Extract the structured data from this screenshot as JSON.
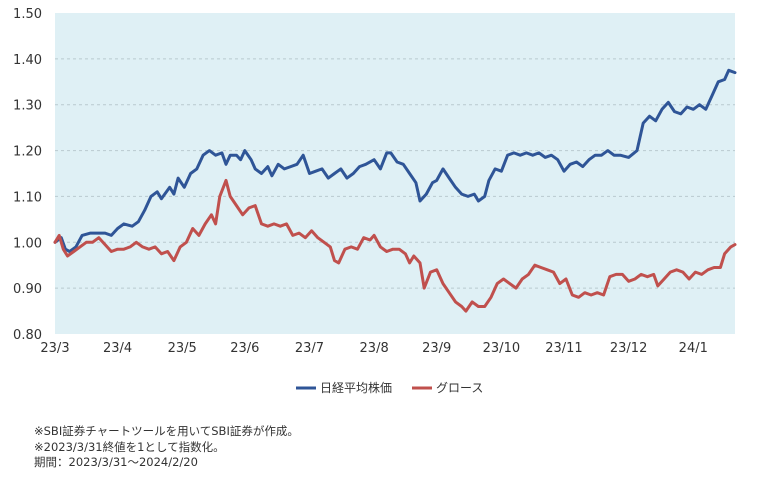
{
  "chart_data": {
    "type": "line",
    "title": "",
    "xlabel": "",
    "ylabel": "",
    "ylim": [
      0.8,
      1.5
    ],
    "yticks": [
      "0.80",
      "0.90",
      "1.00",
      "1.10",
      "1.20",
      "1.30",
      "1.40",
      "1.50"
    ],
    "xlim": [
      "2023-03-31",
      "2024-02-20"
    ],
    "xticks": [
      {
        "label": "23/3",
        "date": "2023-03-31"
      },
      {
        "label": "23/4",
        "date": "2023-04-30"
      },
      {
        "label": "23/5",
        "date": "2023-05-31"
      },
      {
        "label": "23/6",
        "date": "2023-06-30"
      },
      {
        "label": "23/7",
        "date": "2023-07-31"
      },
      {
        "label": "23/8",
        "date": "2023-08-31"
      },
      {
        "label": "23/9",
        "date": "2023-09-30"
      },
      {
        "label": "23/10",
        "date": "2023-10-31"
      },
      {
        "label": "23/11",
        "date": "2023-11-30"
      },
      {
        "label": "23/12",
        "date": "2023-12-31"
      },
      {
        "label": "24/1",
        "date": "2024-01-31"
      }
    ],
    "grid": "horizontal dashed",
    "background": "#dff0f5",
    "legend_position": "bottom",
    "series": [
      {
        "name": "日経平均株価",
        "color": "#2f5597",
        "points": [
          [
            "2023-03-31",
            1.0
          ],
          [
            "2023-04-03",
            1.01
          ],
          [
            "2023-04-05",
            0.985
          ],
          [
            "2023-04-07",
            0.98
          ],
          [
            "2023-04-10",
            0.99
          ],
          [
            "2023-04-13",
            1.015
          ],
          [
            "2023-04-17",
            1.02
          ],
          [
            "2023-04-20",
            1.02
          ],
          [
            "2023-04-24",
            1.02
          ],
          [
            "2023-04-27",
            1.015
          ],
          [
            "2023-04-30",
            1.03
          ],
          [
            "2023-05-03",
            1.04
          ],
          [
            "2023-05-07",
            1.035
          ],
          [
            "2023-05-10",
            1.045
          ],
          [
            "2023-05-13",
            1.07
          ],
          [
            "2023-05-16",
            1.1
          ],
          [
            "2023-05-19",
            1.11
          ],
          [
            "2023-05-21",
            1.095
          ],
          [
            "2023-05-25",
            1.12
          ],
          [
            "2023-05-27",
            1.105
          ],
          [
            "2023-05-29",
            1.14
          ],
          [
            "2023-06-01",
            1.12
          ],
          [
            "2023-06-04",
            1.15
          ],
          [
            "2023-06-07",
            1.16
          ],
          [
            "2023-06-10",
            1.19
          ],
          [
            "2023-06-13",
            1.2
          ],
          [
            "2023-06-16",
            1.19
          ],
          [
            "2023-06-19",
            1.195
          ],
          [
            "2023-06-21",
            1.17
          ],
          [
            "2023-06-23",
            1.19
          ],
          [
            "2023-06-26",
            1.19
          ],
          [
            "2023-06-28",
            1.18
          ],
          [
            "2023-06-30",
            1.2
          ],
          [
            "2023-07-03",
            1.18
          ],
          [
            "2023-07-05",
            1.16
          ],
          [
            "2023-07-08",
            1.15
          ],
          [
            "2023-07-11",
            1.165
          ],
          [
            "2023-07-13",
            1.145
          ],
          [
            "2023-07-16",
            1.17
          ],
          [
            "2023-07-19",
            1.16
          ],
          [
            "2023-07-22",
            1.165
          ],
          [
            "2023-07-25",
            1.17
          ],
          [
            "2023-07-28",
            1.19
          ],
          [
            "2023-07-31",
            1.15
          ],
          [
            "2023-08-03",
            1.155
          ],
          [
            "2023-08-06",
            1.16
          ],
          [
            "2023-08-09",
            1.14
          ],
          [
            "2023-08-12",
            1.15
          ],
          [
            "2023-08-15",
            1.16
          ],
          [
            "2023-08-18",
            1.14
          ],
          [
            "2023-08-21",
            1.15
          ],
          [
            "2023-08-24",
            1.165
          ],
          [
            "2023-08-27",
            1.17
          ],
          [
            "2023-08-31",
            1.18
          ],
          [
            "2023-09-03",
            1.16
          ],
          [
            "2023-09-06",
            1.195
          ],
          [
            "2023-09-08",
            1.195
          ],
          [
            "2023-09-11",
            1.175
          ],
          [
            "2023-09-14",
            1.17
          ],
          [
            "2023-09-17",
            1.15
          ],
          [
            "2023-09-20",
            1.13
          ],
          [
            "2023-09-22",
            1.09
          ],
          [
            "2023-09-25",
            1.105
          ],
          [
            "2023-09-28",
            1.13
          ],
          [
            "2023-09-30",
            1.135
          ],
          [
            "2023-10-03",
            1.16
          ],
          [
            "2023-10-06",
            1.14
          ],
          [
            "2023-10-09",
            1.12
          ],
          [
            "2023-10-12",
            1.105
          ],
          [
            "2023-10-15",
            1.1
          ],
          [
            "2023-10-18",
            1.105
          ],
          [
            "2023-10-20",
            1.09
          ],
          [
            "2023-10-23",
            1.1
          ],
          [
            "2023-10-25",
            1.135
          ],
          [
            "2023-10-28",
            1.16
          ],
          [
            "2023-10-31",
            1.155
          ],
          [
            "2023-11-03",
            1.19
          ],
          [
            "2023-11-06",
            1.195
          ],
          [
            "2023-11-09",
            1.19
          ],
          [
            "2023-11-12",
            1.195
          ],
          [
            "2023-11-15",
            1.19
          ],
          [
            "2023-11-18",
            1.195
          ],
          [
            "2023-11-21",
            1.185
          ],
          [
            "2023-11-24",
            1.19
          ],
          [
            "2023-11-27",
            1.18
          ],
          [
            "2023-11-30",
            1.155
          ],
          [
            "2023-12-03",
            1.17
          ],
          [
            "2023-12-06",
            1.175
          ],
          [
            "2023-12-09",
            1.165
          ],
          [
            "2023-12-12",
            1.18
          ],
          [
            "2023-12-15",
            1.19
          ],
          [
            "2023-12-18",
            1.19
          ],
          [
            "2023-12-21",
            1.2
          ],
          [
            "2023-12-24",
            1.19
          ],
          [
            "2023-12-27",
            1.19
          ],
          [
            "2023-12-31",
            1.185
          ],
          [
            "2024-01-04",
            1.2
          ],
          [
            "2024-01-07",
            1.26
          ],
          [
            "2024-01-10",
            1.275
          ],
          [
            "2024-01-13",
            1.265
          ],
          [
            "2024-01-16",
            1.29
          ],
          [
            "2024-01-19",
            1.305
          ],
          [
            "2024-01-22",
            1.285
          ],
          [
            "2024-01-25",
            1.28
          ],
          [
            "2024-01-28",
            1.295
          ],
          [
            "2024-01-31",
            1.29
          ],
          [
            "2024-02-03",
            1.3
          ],
          [
            "2024-02-06",
            1.29
          ],
          [
            "2024-02-09",
            1.32
          ],
          [
            "2024-02-12",
            1.35
          ],
          [
            "2024-02-15",
            1.355
          ],
          [
            "2024-02-17",
            1.375
          ],
          [
            "2024-02-20",
            1.37
          ]
        ]
      },
      {
        "name": "グロース",
        "color": "#c0504d",
        "points": [
          [
            "2023-03-31",
            1.0
          ],
          [
            "2023-04-02",
            1.015
          ],
          [
            "2023-04-04",
            0.985
          ],
          [
            "2023-04-06",
            0.97
          ],
          [
            "2023-04-09",
            0.98
          ],
          [
            "2023-04-12",
            0.99
          ],
          [
            "2023-04-15",
            1.0
          ],
          [
            "2023-04-18",
            1.0
          ],
          [
            "2023-04-21",
            1.01
          ],
          [
            "2023-04-24",
            0.995
          ],
          [
            "2023-04-27",
            0.98
          ],
          [
            "2023-04-30",
            0.985
          ],
          [
            "2023-05-03",
            0.985
          ],
          [
            "2023-05-06",
            0.99
          ],
          [
            "2023-05-09",
            1.0
          ],
          [
            "2023-05-12",
            0.99
          ],
          [
            "2023-05-15",
            0.985
          ],
          [
            "2023-05-18",
            0.99
          ],
          [
            "2023-05-21",
            0.975
          ],
          [
            "2023-05-24",
            0.98
          ],
          [
            "2023-05-27",
            0.96
          ],
          [
            "2023-05-30",
            0.99
          ],
          [
            "2023-06-02",
            1.0
          ],
          [
            "2023-06-05",
            1.03
          ],
          [
            "2023-06-08",
            1.015
          ],
          [
            "2023-06-11",
            1.04
          ],
          [
            "2023-06-14",
            1.06
          ],
          [
            "2023-06-16",
            1.04
          ],
          [
            "2023-06-18",
            1.1
          ],
          [
            "2023-06-21",
            1.135
          ],
          [
            "2023-06-23",
            1.1
          ],
          [
            "2023-06-26",
            1.08
          ],
          [
            "2023-06-29",
            1.06
          ],
          [
            "2023-07-02",
            1.075
          ],
          [
            "2023-07-05",
            1.08
          ],
          [
            "2023-07-08",
            1.04
          ],
          [
            "2023-07-11",
            1.035
          ],
          [
            "2023-07-14",
            1.04
          ],
          [
            "2023-07-17",
            1.035
          ],
          [
            "2023-07-20",
            1.04
          ],
          [
            "2023-07-23",
            1.015
          ],
          [
            "2023-07-26",
            1.02
          ],
          [
            "2023-07-29",
            1.01
          ],
          [
            "2023-08-01",
            1.025
          ],
          [
            "2023-08-04",
            1.01
          ],
          [
            "2023-08-07",
            1.0
          ],
          [
            "2023-08-10",
            0.99
          ],
          [
            "2023-08-12",
            0.96
          ],
          [
            "2023-08-14",
            0.955
          ],
          [
            "2023-08-17",
            0.985
          ],
          [
            "2023-08-20",
            0.99
          ],
          [
            "2023-08-23",
            0.985
          ],
          [
            "2023-08-26",
            1.01
          ],
          [
            "2023-08-29",
            1.005
          ],
          [
            "2023-08-31",
            1.015
          ],
          [
            "2023-09-03",
            0.99
          ],
          [
            "2023-09-06",
            0.98
          ],
          [
            "2023-09-09",
            0.985
          ],
          [
            "2023-09-12",
            0.985
          ],
          [
            "2023-09-15",
            0.975
          ],
          [
            "2023-09-17",
            0.955
          ],
          [
            "2023-09-19",
            0.97
          ],
          [
            "2023-09-22",
            0.955
          ],
          [
            "2023-09-24",
            0.9
          ],
          [
            "2023-09-27",
            0.935
          ],
          [
            "2023-09-30",
            0.94
          ],
          [
            "2023-10-03",
            0.91
          ],
          [
            "2023-10-06",
            0.89
          ],
          [
            "2023-10-09",
            0.87
          ],
          [
            "2023-10-12",
            0.86
          ],
          [
            "2023-10-14",
            0.85
          ],
          [
            "2023-10-17",
            0.87
          ],
          [
            "2023-10-20",
            0.86
          ],
          [
            "2023-10-23",
            0.86
          ],
          [
            "2023-10-26",
            0.88
          ],
          [
            "2023-10-29",
            0.91
          ],
          [
            "2023-11-01",
            0.92
          ],
          [
            "2023-11-04",
            0.91
          ],
          [
            "2023-11-07",
            0.9
          ],
          [
            "2023-11-10",
            0.92
          ],
          [
            "2023-11-13",
            0.93
          ],
          [
            "2023-11-16",
            0.95
          ],
          [
            "2023-11-19",
            0.945
          ],
          [
            "2023-11-22",
            0.94
          ],
          [
            "2023-11-25",
            0.935
          ],
          [
            "2023-11-28",
            0.91
          ],
          [
            "2023-12-01",
            0.92
          ],
          [
            "2023-12-04",
            0.885
          ],
          [
            "2023-12-07",
            0.88
          ],
          [
            "2023-12-10",
            0.89
          ],
          [
            "2023-12-13",
            0.885
          ],
          [
            "2023-12-16",
            0.89
          ],
          [
            "2023-12-19",
            0.885
          ],
          [
            "2023-12-22",
            0.925
          ],
          [
            "2023-12-25",
            0.93
          ],
          [
            "2023-12-28",
            0.93
          ],
          [
            "2023-12-31",
            0.915
          ],
          [
            "2024-01-03",
            0.92
          ],
          [
            "2024-01-06",
            0.93
          ],
          [
            "2024-01-09",
            0.925
          ],
          [
            "2024-01-12",
            0.93
          ],
          [
            "2024-01-14",
            0.905
          ],
          [
            "2024-01-17",
            0.92
          ],
          [
            "2024-01-20",
            0.935
          ],
          [
            "2024-01-23",
            0.94
          ],
          [
            "2024-01-26",
            0.935
          ],
          [
            "2024-01-29",
            0.92
          ],
          [
            "2024-02-01",
            0.935
          ],
          [
            "2024-02-04",
            0.93
          ],
          [
            "2024-02-07",
            0.94
          ],
          [
            "2024-02-10",
            0.945
          ],
          [
            "2024-02-13",
            0.945
          ],
          [
            "2024-02-15",
            0.975
          ],
          [
            "2024-02-18",
            0.99
          ],
          [
            "2024-02-20",
            0.995
          ]
        ]
      }
    ]
  },
  "notes": [
    "※SBI証券チャートツールを用いてSBI証券が作成。",
    "※2023/3/31終値を1として指数化。",
    "期間：2023/3/31～2024/2/20"
  ]
}
